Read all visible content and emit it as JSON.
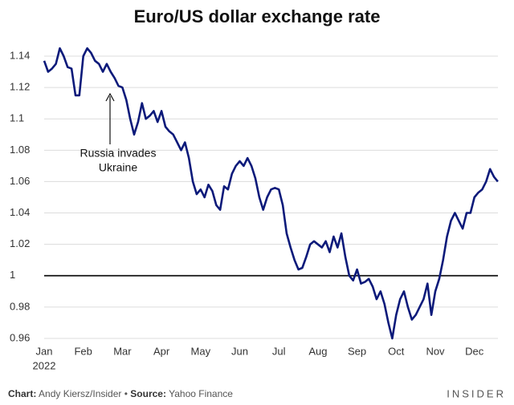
{
  "chart_data": {
    "type": "line",
    "title": "Euro/US dollar exchange rate",
    "categories": [
      "Jan",
      null,
      null,
      null,
      null,
      null,
      null,
      null,
      null,
      null,
      "Feb",
      null,
      null,
      null,
      null,
      null,
      null,
      null,
      null,
      null,
      "Mar",
      null,
      null,
      null,
      null,
      null,
      null,
      null,
      null,
      null,
      "Apr",
      null,
      null,
      null,
      null,
      null,
      null,
      null,
      null,
      null,
      "May",
      null,
      null,
      null,
      null,
      null,
      null,
      null,
      null,
      null,
      "Jun",
      null,
      null,
      null,
      null,
      null,
      null,
      null,
      null,
      null,
      "Jul",
      null,
      null,
      null,
      null,
      null,
      null,
      null,
      null,
      null,
      "Aug",
      null,
      null,
      null,
      null,
      null,
      null,
      null,
      null,
      null,
      "Sep",
      null,
      null,
      null,
      null,
      null,
      null,
      null,
      null,
      null,
      "Oct",
      null,
      null,
      null,
      null,
      null,
      null,
      null,
      null,
      null,
      "Nov",
      null,
      null,
      null,
      null,
      null,
      null,
      null,
      null,
      null,
      "Dec",
      null,
      null,
      null,
      null,
      null,
      null
    ],
    "year_label": "2022",
    "series": [
      {
        "name": "EUR/USD",
        "color": "#0c1a7a",
        "values": [
          1.137,
          1.13,
          1.132,
          1.135,
          1.145,
          1.14,
          1.133,
          1.132,
          1.115,
          1.115,
          1.14,
          1.145,
          1.142,
          1.137,
          1.135,
          1.13,
          1.135,
          1.13,
          1.126,
          1.121,
          1.12,
          1.112,
          1.1,
          1.09,
          1.098,
          1.11,
          1.1,
          1.102,
          1.105,
          1.098,
          1.105,
          1.095,
          1.092,
          1.09,
          1.085,
          1.08,
          1.085,
          1.075,
          1.06,
          1.052,
          1.055,
          1.05,
          1.058,
          1.054,
          1.045,
          1.042,
          1.057,
          1.055,
          1.065,
          1.07,
          1.073,
          1.07,
          1.075,
          1.07,
          1.062,
          1.05,
          1.042,
          1.05,
          1.055,
          1.056,
          1.055,
          1.045,
          1.027,
          1.018,
          1.01,
          1.004,
          1.005,
          1.012,
          1.02,
          1.022,
          1.02,
          1.018,
          1.022,
          1.015,
          1.025,
          1.018,
          1.027,
          1.012,
          1.0,
          0.997,
          1.004,
          0.995,
          0.996,
          0.998,
          0.993,
          0.985,
          0.99,
          0.982,
          0.97,
          0.96,
          0.975,
          0.985,
          0.99,
          0.98,
          0.972,
          0.975,
          0.98,
          0.985,
          0.995,
          0.975,
          0.99,
          0.998,
          1.01,
          1.025,
          1.035,
          1.04,
          1.035,
          1.03,
          1.04,
          1.04,
          1.05,
          1.053,
          1.055,
          1.06,
          1.068,
          1.063,
          1.06
        ]
      }
    ],
    "ylim": [
      0.955,
      1.15
    ],
    "yticks": [
      0.96,
      0.98,
      1,
      1.02,
      1.04,
      1.06,
      1.08,
      1.1,
      1.12,
      1.14
    ],
    "grid": true,
    "reference_line": 1,
    "annotation": {
      "lines": [
        "Russia invades",
        "Ukraine"
      ]
    },
    "footer": {
      "chart_label": "Chart:",
      "chart_credit": "Andy Kiersz/Insider",
      "separator": "•",
      "source_label": "Source:",
      "source": "Yahoo Finance",
      "brand": "INSIDER"
    }
  }
}
